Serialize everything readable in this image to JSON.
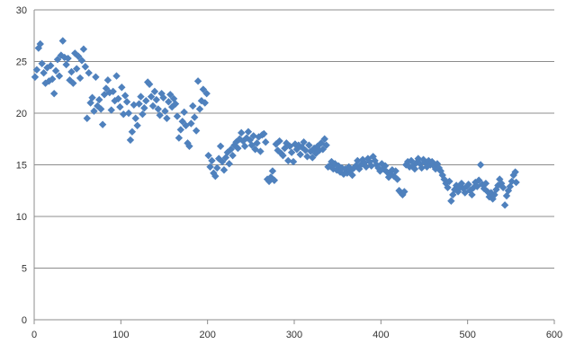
{
  "chart_data": {
    "type": "scatter",
    "title": "",
    "xlabel": "",
    "ylabel": "",
    "xlim": [
      0,
      600
    ],
    "ylim": [
      0,
      30
    ],
    "x_ticks": [
      "0",
      "100",
      "200",
      "300",
      "400",
      "500",
      "600"
    ],
    "y_ticks": [
      "0",
      "5",
      "10",
      "15",
      "20",
      "25",
      "30"
    ],
    "grid": "horizontal",
    "legend": "none",
    "marker": "diamond",
    "color": "#4F81BD",
    "series": [
      {
        "points": [
          [
            1,
            23.5
          ],
          [
            3,
            24.2
          ],
          [
            5,
            26.3
          ],
          [
            7,
            26.7
          ],
          [
            9,
            24.8
          ],
          [
            11,
            23.9
          ],
          [
            13,
            22.9
          ],
          [
            15,
            24.4
          ],
          [
            17,
            23.1
          ],
          [
            19,
            24.6
          ],
          [
            21,
            23.3
          ],
          [
            23,
            21.9
          ],
          [
            25,
            24.1
          ],
          [
            27,
            25.2
          ],
          [
            29,
            23.6
          ],
          [
            31,
            25.6
          ],
          [
            33,
            27.0
          ],
          [
            35,
            25.4
          ],
          [
            37,
            24.7
          ],
          [
            39,
            25.3
          ],
          [
            41,
            23.2
          ],
          [
            43,
            24.0
          ],
          [
            45,
            22.9
          ],
          [
            47,
            25.8
          ],
          [
            49,
            24.3
          ],
          [
            51,
            25.5
          ],
          [
            53,
            23.4
          ],
          [
            55,
            25.1
          ],
          [
            57,
            26.2
          ],
          [
            59,
            24.5
          ],
          [
            61,
            19.5
          ],
          [
            63,
            23.9
          ],
          [
            65,
            21.0
          ],
          [
            67,
            21.5
          ],
          [
            69,
            20.2
          ],
          [
            71,
            23.5
          ],
          [
            73,
            20.7
          ],
          [
            75,
            21.3
          ],
          [
            77,
            20.4
          ],
          [
            79,
            18.9
          ],
          [
            81,
            21.8
          ],
          [
            83,
            22.4
          ],
          [
            85,
            23.2
          ],
          [
            87,
            22.0
          ],
          [
            89,
            20.3
          ],
          [
            91,
            22.1
          ],
          [
            93,
            21.2
          ],
          [
            95,
            23.6
          ],
          [
            97,
            21.4
          ],
          [
            99,
            20.6
          ],
          [
            101,
            22.5
          ],
          [
            103,
            19.9
          ],
          [
            105,
            21.7
          ],
          [
            107,
            21.1
          ],
          [
            109,
            20.0
          ],
          [
            111,
            17.4
          ],
          [
            113,
            18.2
          ],
          [
            115,
            20.8
          ],
          [
            117,
            19.5
          ],
          [
            119,
            18.8
          ],
          [
            121,
            20.9
          ],
          [
            123,
            21.6
          ],
          [
            125,
            19.9
          ],
          [
            127,
            20.5
          ],
          [
            129,
            21.2
          ],
          [
            131,
            23.0
          ],
          [
            133,
            22.8
          ],
          [
            135,
            21.6
          ],
          [
            137,
            20.7
          ],
          [
            139,
            22.1
          ],
          [
            141,
            21.3
          ],
          [
            143,
            20.4
          ],
          [
            145,
            19.8
          ],
          [
            147,
            21.9
          ],
          [
            149,
            21.5
          ],
          [
            151,
            20.2
          ],
          [
            153,
            19.5
          ],
          [
            155,
            21.1
          ],
          [
            157,
            21.8
          ],
          [
            159,
            20.6
          ],
          [
            161,
            21.4
          ],
          [
            163,
            20.9
          ],
          [
            165,
            19.7
          ],
          [
            167,
            17.6
          ],
          [
            169,
            18.4
          ],
          [
            171,
            19.2
          ],
          [
            173,
            20.1
          ],
          [
            175,
            18.8
          ],
          [
            177,
            17.1
          ],
          [
            179,
            16.8
          ],
          [
            181,
            19.0
          ],
          [
            183,
            20.7
          ],
          [
            185,
            19.6
          ],
          [
            187,
            18.3
          ],
          [
            189,
            23.1
          ],
          [
            191,
            20.4
          ],
          [
            193,
            21.2
          ],
          [
            195,
            22.3
          ],
          [
            197,
            21.0
          ],
          [
            199,
            21.9
          ],
          [
            201,
            15.9
          ],
          [
            203,
            14.8
          ],
          [
            205,
            15.4
          ],
          [
            207,
            14.2
          ],
          [
            209,
            13.9
          ],
          [
            211,
            14.7
          ],
          [
            213,
            15.6
          ],
          [
            215,
            16.8
          ],
          [
            217,
            15.3
          ],
          [
            219,
            14.5
          ],
          [
            221,
            15.7
          ],
          [
            223,
            16.2
          ],
          [
            225,
            15.1
          ],
          [
            227,
            16.5
          ],
          [
            229,
            15.9
          ],
          [
            231,
            16.9
          ],
          [
            233,
            17.2
          ],
          [
            235,
            16.6
          ],
          [
            237,
            17.5
          ],
          [
            239,
            18.1
          ],
          [
            241,
            17.3
          ],
          [
            243,
            16.8
          ],
          [
            245,
            17.6
          ],
          [
            247,
            18.2
          ],
          [
            249,
            17.4
          ],
          [
            251,
            16.9
          ],
          [
            253,
            17.8
          ],
          [
            255,
            16.5
          ],
          [
            257,
            17.1
          ],
          [
            259,
            17.7
          ],
          [
            261,
            16.3
          ],
          [
            263,
            17.9
          ],
          [
            265,
            18.0
          ],
          [
            267,
            17.2
          ],
          [
            269,
            13.6
          ],
          [
            271,
            13.4
          ],
          [
            273,
            13.8
          ],
          [
            275,
            14.4
          ],
          [
            277,
            13.5
          ],
          [
            279,
            17.0
          ],
          [
            281,
            16.4
          ],
          [
            283,
            17.3
          ],
          [
            285,
            16.1
          ],
          [
            287,
            15.9
          ],
          [
            289,
            16.6
          ],
          [
            291,
            17.1
          ],
          [
            293,
            15.4
          ],
          [
            295,
            16.8
          ],
          [
            297,
            16.2
          ],
          [
            299,
            15.3
          ],
          [
            301,
            17.0
          ],
          [
            303,
            16.5
          ],
          [
            305,
            16.9
          ],
          [
            307,
            16.0
          ],
          [
            309,
            16.7
          ],
          [
            311,
            17.2
          ],
          [
            313,
            16.4
          ],
          [
            315,
            15.8
          ],
          [
            317,
            16.9
          ],
          [
            319,
            16.3
          ],
          [
            321,
            15.7
          ],
          [
            323,
            16.6
          ],
          [
            325,
            16.1
          ],
          [
            327,
            16.8
          ],
          [
            329,
            16.4
          ],
          [
            331,
            17.1
          ],
          [
            333,
            16.5
          ],
          [
            335,
            17.5
          ],
          [
            337,
            16.9
          ],
          [
            339,
            14.8
          ],
          [
            341,
            14.9
          ],
          [
            343,
            15.3
          ],
          [
            345,
            14.6
          ],
          [
            347,
            15.1
          ],
          [
            349,
            14.5
          ],
          [
            351,
            14.9
          ],
          [
            353,
            14.3
          ],
          [
            355,
            14.7
          ],
          [
            357,
            14.1
          ],
          [
            359,
            14.6
          ],
          [
            361,
            14.2
          ],
          [
            363,
            14.8
          ],
          [
            365,
            14.4
          ],
          [
            367,
            14.0
          ],
          [
            369,
            14.7
          ],
          [
            371,
            14.9
          ],
          [
            373,
            15.4
          ],
          [
            375,
            14.6
          ],
          [
            377,
            15.0
          ],
          [
            379,
            15.5
          ],
          [
            381,
            15.2
          ],
          [
            383,
            14.8
          ],
          [
            385,
            15.6
          ],
          [
            387,
            15.3
          ],
          [
            389,
            14.9
          ],
          [
            391,
            15.8
          ],
          [
            393,
            15.4
          ],
          [
            395,
            15.0
          ],
          [
            397,
            14.7
          ],
          [
            399,
            14.4
          ],
          [
            401,
            15.1
          ],
          [
            403,
            14.6
          ],
          [
            405,
            14.9
          ],
          [
            407,
            14.3
          ],
          [
            409,
            13.8
          ],
          [
            411,
            14.1
          ],
          [
            413,
            14.5
          ],
          [
            415,
            13.9
          ],
          [
            417,
            14.4
          ],
          [
            419,
            13.6
          ],
          [
            421,
            12.5
          ],
          [
            423,
            12.3
          ],
          [
            425,
            12.1
          ],
          [
            427,
            12.4
          ],
          [
            429,
            15.0
          ],
          [
            431,
            15.3
          ],
          [
            433,
            14.8
          ],
          [
            435,
            15.4
          ],
          [
            437,
            14.9
          ],
          [
            439,
            14.6
          ],
          [
            441,
            15.2
          ],
          [
            443,
            15.6
          ],
          [
            445,
            15.1
          ],
          [
            447,
            14.7
          ],
          [
            449,
            15.5
          ],
          [
            451,
            15.2
          ],
          [
            453,
            14.8
          ],
          [
            455,
            15.4
          ],
          [
            457,
            15.0
          ],
          [
            459,
            15.3
          ],
          [
            461,
            14.9
          ],
          [
            463,
            14.6
          ],
          [
            465,
            15.1
          ],
          [
            467,
            14.7
          ],
          [
            469,
            14.4
          ],
          [
            471,
            14.0
          ],
          [
            473,
            13.6
          ],
          [
            475,
            13.2
          ],
          [
            477,
            12.8
          ],
          [
            479,
            13.4
          ],
          [
            481,
            11.5
          ],
          [
            483,
            12.1
          ],
          [
            485,
            12.6
          ],
          [
            487,
            13.0
          ],
          [
            489,
            12.4
          ],
          [
            491,
            12.8
          ],
          [
            493,
            13.2
          ],
          [
            495,
            12.7
          ],
          [
            497,
            12.3
          ],
          [
            499,
            12.9
          ],
          [
            501,
            13.1
          ],
          [
            503,
            12.5
          ],
          [
            505,
            12.1
          ],
          [
            507,
            12.8
          ],
          [
            509,
            13.3
          ],
          [
            511,
            12.9
          ],
          [
            513,
            13.5
          ],
          [
            515,
            15.0
          ],
          [
            517,
            13.1
          ],
          [
            519,
            12.7
          ],
          [
            521,
            13.2
          ],
          [
            523,
            12.4
          ],
          [
            525,
            11.9
          ],
          [
            527,
            12.3
          ],
          [
            529,
            11.7
          ],
          [
            531,
            12.1
          ],
          [
            533,
            12.6
          ],
          [
            535,
            13.0
          ],
          [
            537,
            13.6
          ],
          [
            539,
            13.2
          ],
          [
            541,
            12.8
          ],
          [
            543,
            11.1
          ],
          [
            545,
            12.0
          ],
          [
            547,
            12.5
          ],
          [
            549,
            12.9
          ],
          [
            551,
            13.4
          ],
          [
            553,
            14.0
          ],
          [
            555,
            14.3
          ],
          [
            556,
            13.3
          ]
        ]
      }
    ]
  }
}
